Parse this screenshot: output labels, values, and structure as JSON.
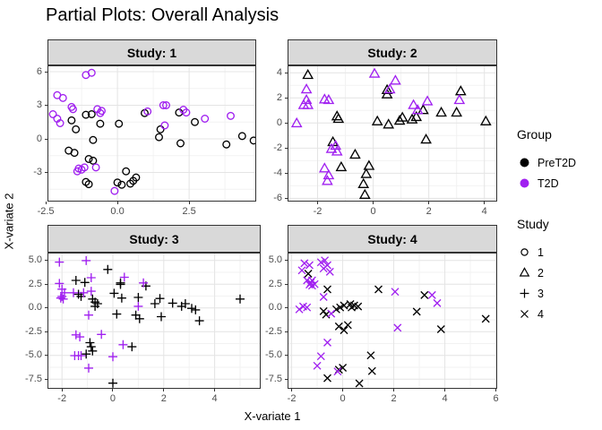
{
  "title": "Partial Plots: Overall Analysis",
  "axes": {
    "x_title": "X-variate 1",
    "y_title": "X-variate 2"
  },
  "colors": {
    "PreT2D": "#000000",
    "T2D": "#A020F0"
  },
  "legend": {
    "group": {
      "title": "Group",
      "items": [
        {
          "label": "PreT2D",
          "color": "#000000"
        },
        {
          "label": "T2D",
          "color": "#A020F0"
        }
      ]
    },
    "study": {
      "title": "Study",
      "items": [
        {
          "label": "1",
          "shape": "circle"
        },
        {
          "label": "2",
          "shape": "triangle"
        },
        {
          "label": "3",
          "shape": "plus"
        },
        {
          "label": "4",
          "shape": "x"
        }
      ]
    }
  },
  "chart_data": [
    {
      "type": "scatter",
      "facet_label": "Study: 1",
      "shape": "circle",
      "xlim": [
        -2.44,
        4.84
      ],
      "ylim": [
        -5.6,
        6.56
      ],
      "x_ticks": {
        "values": [
          -2.5,
          0,
          2.5
        ],
        "labels": [
          "-2.5",
          "0.0",
          "2.5"
        ]
      },
      "y_ticks": {
        "values": [
          6,
          3,
          0,
          -3
        ],
        "labels": [
          "6",
          "3",
          "0",
          "-3"
        ]
      },
      "series": [
        {
          "name": "PreT2D",
          "points": [
            [
              -1.6,
              1.65
            ],
            [
              -1.45,
              0.85
            ],
            [
              -1.1,
              2.15
            ],
            [
              -0.9,
              2.2
            ],
            [
              -0.6,
              1.35
            ],
            [
              0.05,
              1.35
            ],
            [
              -0.85,
              -0.1
            ],
            [
              0.95,
              2.3
            ],
            [
              1.5,
              0.85
            ],
            [
              1.45,
              0.15
            ],
            [
              2.15,
              2.35
            ],
            [
              2.7,
              1.5
            ],
            [
              2.2,
              -0.4
            ],
            [
              3.8,
              -0.5
            ],
            [
              4.35,
              0.25
            ],
            [
              4.75,
              -0.15
            ],
            [
              -1.7,
              -1.05
            ],
            [
              -1.5,
              -1.25
            ],
            [
              -1.0,
              -1.8
            ],
            [
              -0.85,
              -1.95
            ],
            [
              -1.1,
              -3.85
            ],
            [
              -1.0,
              -4.05
            ],
            [
              0.3,
              -2.9
            ],
            [
              0.65,
              -3.45
            ],
            [
              0.0,
              -3.9
            ],
            [
              0.15,
              -4.1
            ],
            [
              0.45,
              -4.0
            ],
            [
              0.55,
              -3.75
            ]
          ]
        },
        {
          "name": "T2D",
          "points": [
            [
              -1.1,
              5.7
            ],
            [
              -0.9,
              5.9
            ],
            [
              -2.1,
              3.9
            ],
            [
              -1.9,
              3.65
            ],
            [
              -1.6,
              2.85
            ],
            [
              -1.55,
              2.65
            ],
            [
              -2.25,
              2.2
            ],
            [
              -2.1,
              1.8
            ],
            [
              -2.0,
              1.4
            ],
            [
              -0.7,
              2.65
            ],
            [
              -0.55,
              2.5
            ],
            [
              -0.6,
              2.3
            ],
            [
              1.05,
              2.45
            ],
            [
              1.6,
              3.0
            ],
            [
              1.7,
              3.0
            ],
            [
              1.65,
              1.2
            ],
            [
              2.3,
              2.6
            ],
            [
              2.4,
              2.35
            ],
            [
              3.05,
              1.8
            ],
            [
              3.95,
              2.05
            ],
            [
              -1.35,
              -2.65
            ],
            [
              -1.25,
              -2.75
            ],
            [
              -1.15,
              -2.55
            ],
            [
              -1.4,
              -2.9
            ],
            [
              -0.75,
              -2.55
            ],
            [
              -0.1,
              -4.65
            ]
          ]
        }
      ]
    },
    {
      "type": "scatter",
      "facet_label": "Study: 2",
      "shape": "triangle",
      "xlim": [
        -3.08,
        4.46
      ],
      "ylim": [
        -6.26,
        4.59
      ],
      "x_ticks": {
        "values": [
          -2,
          0,
          2,
          4
        ],
        "labels": [
          "-2",
          "0",
          "2",
          "4"
        ]
      },
      "y_ticks": {
        "values": [
          4,
          2,
          0,
          -2,
          -4,
          -6
        ],
        "labels": [
          "4",
          "2",
          "0",
          "-2",
          "-4",
          "-6"
        ]
      },
      "series": [
        {
          "name": "PreT2D",
          "points": [
            [
              -2.35,
              3.8
            ],
            [
              0.5,
              2.6
            ],
            [
              0.5,
              2.25
            ],
            [
              3.15,
              2.5
            ],
            [
              -1.3,
              0.5
            ],
            [
              -1.25,
              0.3
            ],
            [
              0.15,
              0.1
            ],
            [
              0.55,
              -0.15
            ],
            [
              0.95,
              0.15
            ],
            [
              1.05,
              0.4
            ],
            [
              1.4,
              0.25
            ],
            [
              1.55,
              0.45
            ],
            [
              1.8,
              1.0
            ],
            [
              2.45,
              0.8
            ],
            [
              3.0,
              0.8
            ],
            [
              4.05,
              0.1
            ],
            [
              1.9,
              -1.35
            ],
            [
              -1.45,
              -1.55
            ],
            [
              -0.65,
              -2.55
            ],
            [
              -1.15,
              -3.55
            ],
            [
              -0.15,
              -3.45
            ],
            [
              -0.25,
              -4.1
            ],
            [
              -0.35,
              -4.9
            ],
            [
              -0.3,
              -5.75
            ]
          ]
        },
        {
          "name": "T2D",
          "points": [
            [
              0.05,
              3.9
            ],
            [
              0.8,
              3.35
            ],
            [
              0.6,
              2.65
            ],
            [
              -2.4,
              2.65
            ],
            [
              -2.4,
              1.8
            ],
            [
              -2.35,
              1.4
            ],
            [
              -2.5,
              1.4
            ],
            [
              -1.75,
              1.85
            ],
            [
              -1.6,
              1.8
            ],
            [
              -2.75,
              -0.05
            ],
            [
              1.6,
              1.0
            ],
            [
              1.95,
              1.7
            ],
            [
              1.45,
              1.4
            ],
            [
              3.1,
              1.8
            ],
            [
              -1.35,
              -1.85
            ],
            [
              -1.5,
              -2.1
            ],
            [
              -1.3,
              -2.3
            ],
            [
              -1.75,
              -3.65
            ],
            [
              -1.6,
              -4.2
            ],
            [
              -1.65,
              -4.65
            ]
          ]
        }
      ]
    },
    {
      "type": "scatter",
      "facet_label": "Study: 3",
      "shape": "plus",
      "xlim": [
        -2.57,
        5.81
      ],
      "ylim": [
        -8.52,
        5.82
      ],
      "x_ticks": {
        "values": [
          -2,
          0,
          2,
          4
        ],
        "labels": [
          "-2",
          "0",
          "2",
          "4"
        ]
      },
      "y_ticks": {
        "values": [
          5,
          2.5,
          0,
          -2.5,
          -5,
          -7.5
        ],
        "labels": [
          "5.0",
          "2.5",
          "0.0",
          "-2.5",
          "-5.0",
          "-7.5"
        ]
      },
      "series": [
        {
          "name": "PreT2D",
          "points": [
            [
              -0.2,
              4.05
            ],
            [
              0.3,
              2.63
            ],
            [
              -1.45,
              2.9
            ],
            [
              -1.1,
              2.68
            ],
            [
              0.3,
              2.47
            ],
            [
              1.3,
              2.3
            ],
            [
              -1.35,
              1.43
            ],
            [
              -1.25,
              1.21
            ],
            [
              -0.8,
              0.93
            ],
            [
              -0.7,
              0.61
            ],
            [
              -0.6,
              0.44
            ],
            [
              -0.7,
              0.17
            ],
            [
              0.05,
              1.54
            ],
            [
              0.35,
              1.04
            ],
            [
              1.0,
              1.1
            ],
            [
              0.15,
              -0.65
            ],
            [
              0.9,
              -0.76
            ],
            [
              1.05,
              -1.14
            ],
            [
              1.65,
              0.44
            ],
            [
              1.85,
              0.99
            ],
            [
              1.9,
              -0.93
            ],
            [
              2.35,
              0.5
            ],
            [
              2.7,
              0.17
            ],
            [
              2.85,
              0.44
            ],
            [
              3.1,
              -0.05
            ],
            [
              3.25,
              -0.21
            ],
            [
              3.4,
              -1.36
            ],
            [
              5.0,
              0.93
            ],
            [
              -0.9,
              -3.66
            ],
            [
              -0.85,
              -4.1
            ],
            [
              -0.8,
              -4.54
            ],
            [
              -1.05,
              -4.86
            ],
            [
              0.75,
              -4.1
            ],
            [
              0.0,
              -7.93
            ]
          ]
        },
        {
          "name": "T2D",
          "points": [
            [
              -2.1,
              4.82
            ],
            [
              -1.05,
              4.98
            ],
            [
              0.45,
              3.23
            ],
            [
              -0.85,
              3.18
            ],
            [
              1.2,
              2.63
            ],
            [
              -2.1,
              2.57
            ],
            [
              -2.0,
              1.97
            ],
            [
              -1.9,
              1.59
            ],
            [
              -2.0,
              1.21
            ],
            [
              -1.95,
              0.93
            ],
            [
              -2.05,
              1.04
            ],
            [
              -1.55,
              1.59
            ],
            [
              -1.15,
              1.59
            ],
            [
              -0.85,
              1.75
            ],
            [
              1.0,
              0.17
            ],
            [
              -0.95,
              -0.76
            ],
            [
              -1.45,
              -2.84
            ],
            [
              -1.3,
              -3.06
            ],
            [
              -0.45,
              -2.79
            ],
            [
              0.4,
              -3.88
            ],
            [
              -1.5,
              -5.03
            ],
            [
              -1.35,
              -5.03
            ],
            [
              -1.25,
              -5.03
            ],
            [
              0.0,
              -5.14
            ],
            [
              -0.95,
              -6.34
            ]
          ]
        }
      ]
    },
    {
      "type": "scatter",
      "facet_label": "Study: 4",
      "shape": "x",
      "xlim": [
        -2.16,
        6.05
      ],
      "ylim": [
        -8.52,
        5.82
      ],
      "x_ticks": {
        "values": [
          -2,
          0,
          2,
          4,
          6
        ],
        "labels": [
          "-2",
          "0",
          "2",
          "4",
          "6"
        ]
      },
      "y_ticks": {
        "values": [
          5,
          2.5,
          0,
          -2.5,
          -5,
          -7.5
        ],
        "labels": [
          "5.0",
          "2.5",
          "0.0",
          "-2.5",
          "-5.0",
          "-7.5"
        ]
      },
      "series": [
        {
          "name": "PreT2D",
          "points": [
            [
              -1.35,
              3.6
            ],
            [
              -0.6,
              1.95
            ],
            [
              1.4,
              1.95
            ],
            [
              3.2,
              1.35
            ],
            [
              -0.75,
              -0.35
            ],
            [
              -0.65,
              -0.7
            ],
            [
              -0.25,
              -0.15
            ],
            [
              -0.1,
              0.05
            ],
            [
              0.05,
              0.25
            ],
            [
              0.3,
              0.4
            ],
            [
              0.45,
              0.25
            ],
            [
              0.35,
              0.05
            ],
            [
              0.6,
              0.15
            ],
            [
              -0.15,
              -1.95
            ],
            [
              0.05,
              -2.35
            ],
            [
              0.2,
              -1.8
            ],
            [
              2.9,
              -0.4
            ],
            [
              3.85,
              -2.25
            ],
            [
              5.6,
              -1.15
            ],
            [
              -0.6,
              -7.4
            ],
            [
              -0.15,
              -6.5
            ],
            [
              0.0,
              -6.3
            ],
            [
              0.65,
              -7.95
            ],
            [
              1.1,
              -5.0
            ],
            [
              1.15,
              -6.65
            ]
          ]
        },
        {
          "name": "T2D",
          "points": [
            [
              -1.5,
              4.7
            ],
            [
              -1.6,
              3.95
            ],
            [
              -1.3,
              4.5
            ],
            [
              -0.85,
              4.8
            ],
            [
              -0.7,
              5.0
            ],
            [
              -0.6,
              4.5
            ],
            [
              -0.75,
              4.15
            ],
            [
              -0.5,
              3.8
            ],
            [
              -1.4,
              2.9
            ],
            [
              -1.25,
              2.65
            ],
            [
              -1.2,
              2.9
            ],
            [
              -1.3,
              2.45
            ],
            [
              -1.2,
              2.35
            ],
            [
              -1.1,
              2.5
            ],
            [
              2.05,
              1.7
            ],
            [
              -0.75,
              1.15
            ],
            [
              -1.55,
              0.15
            ],
            [
              -1.7,
              -0.15
            ],
            [
              -1.4,
              0.05
            ],
            [
              -0.45,
              -0.6
            ],
            [
              2.15,
              -2.1
            ],
            [
              -0.6,
              -3.65
            ],
            [
              -0.85,
              -5.1
            ],
            [
              -1.0,
              -6.1
            ],
            [
              -0.2,
              -6.7
            ],
            [
              3.5,
              1.35
            ],
            [
              3.7,
              0.5
            ]
          ]
        }
      ]
    }
  ]
}
